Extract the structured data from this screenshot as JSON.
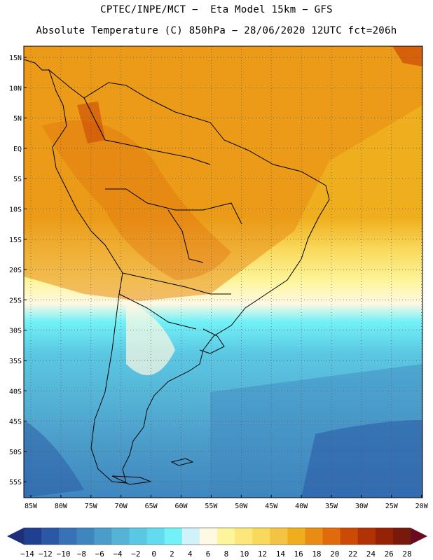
{
  "header": {
    "line1": "CPTEC/INPE/MCT −  Eta Model 15km − GFS",
    "line2": "Absolute Temperature (C) 850hPa − 28/06/2020 12UTC fct=206h"
  },
  "map": {
    "lat_labels": [
      "15N",
      "10N",
      "5N",
      "EQ",
      "5S",
      "10S",
      "15S",
      "20S",
      "25S",
      "30S",
      "35S",
      "40S",
      "45S",
      "50S",
      "55S"
    ],
    "lon_labels": [
      "85W",
      "80W",
      "75W",
      "70W",
      "65W",
      "60W",
      "55W",
      "50W",
      "45W",
      "40W",
      "35W",
      "30W",
      "25W",
      "20W"
    ]
  },
  "colorbar": {
    "labels": [
      "-14",
      "-12",
      "-10",
      "-8",
      "-6",
      "-4",
      "-2",
      "0",
      "2",
      "4",
      "6",
      "8",
      "10",
      "12",
      "14",
      "16",
      "18",
      "20",
      "22",
      "24",
      "26",
      "28"
    ],
    "colors": [
      "#1f3f8f",
      "#2a58a4",
      "#3772b4",
      "#3f86bf",
      "#4b9cc9",
      "#55b3d6",
      "#5bc8e3",
      "#63dbef",
      "#72f1f7",
      "#d0f2fb",
      "#fff8e3",
      "#fdf59b",
      "#fde67a",
      "#f9d95b",
      "#f3c443",
      "#efae1e",
      "#e88c14",
      "#e06a0c",
      "#cc4a06",
      "#b13206",
      "#942306",
      "#771a0a"
    ],
    "low_arrow_color": "#1b2f7a",
    "high_arrow_color": "#6a0a20"
  }
}
